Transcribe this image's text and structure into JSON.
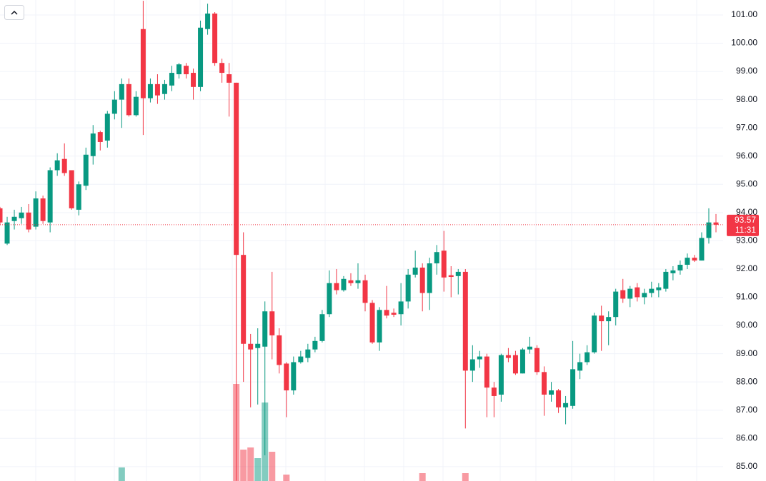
{
  "chart_data": {
    "type": "candlestick",
    "up_color": "#089981",
    "down_color": "#f23645",
    "ylim": [
      84.49,
      101.53
    ],
    "yticks": [
      {
        "value": 85,
        "label": "85.00"
      },
      {
        "value": 86,
        "label": "86.00"
      },
      {
        "value": 87,
        "label": "87.00"
      },
      {
        "value": 88,
        "label": "88.00"
      },
      {
        "value": 89,
        "label": "89.00"
      },
      {
        "value": 90,
        "label": "90.00"
      },
      {
        "value": 91,
        "label": "91.00"
      },
      {
        "value": 92,
        "label": "92.00"
      },
      {
        "value": 93,
        "label": "93.00"
      },
      {
        "value": 94,
        "label": "94.00"
      },
      {
        "value": 95,
        "label": "95.00"
      },
      {
        "value": 96,
        "label": "96.00"
      },
      {
        "value": 97,
        "label": "97.00"
      },
      {
        "value": 98,
        "label": "98.00"
      },
      {
        "value": 99,
        "label": "99.00"
      },
      {
        "value": 100,
        "label": "100.00"
      },
      {
        "value": 101,
        "label": "101.00"
      }
    ],
    "grid": true,
    "last_price": 93.57,
    "countdown": "11:31",
    "open": [
      94.15,
      92.9,
      93.7,
      93.8,
      94.0,
      93.5,
      94.5,
      93.65,
      95.5,
      95.9,
      95.5,
      94.1,
      94.95,
      96.0,
      96.85,
      96.55,
      97.5,
      98.0,
      98.55,
      97.45,
      100.5,
      98.05,
      98.55,
      98.2,
      98.5,
      98.9,
      99.2,
      98.95,
      98.45,
      100.5,
      101.05,
      99.3,
      98.9,
      98.6,
      92.5,
      89.35,
      89.2,
      89.25,
      90.5,
      89.65,
      88.65,
      87.7,
      88.7,
      88.85,
      89.15,
      89.45,
      90.4,
      91.5,
      91.25,
      91.6,
      91.5,
      91.6,
      90.8,
      89.4,
      90.55,
      90.45,
      90.4,
      90.85,
      91.8,
      92.05,
      91.15,
      92.2,
      92.65,
      91.78,
      91.75,
      91.9,
      88.4,
      88.8,
      88.9,
      87.8,
      87.55,
      88.95,
      88.95,
      88.3,
      89.15,
      89.2,
      88.35,
      87.55,
      87.7,
      87.1,
      87.15,
      88.4,
      88.7,
      89.05,
      90.35,
      90.15,
      90.3,
      91.25,
      90.95,
      91.35,
      91.0,
      91.15,
      91.25,
      91.3,
      91.85,
      91.95,
      92.15,
      92.4,
      92.3,
      93.1,
      93.65
    ],
    "high": [
      94.2,
      93.85,
      94.1,
      94.2,
      94.3,
      94.75,
      94.6,
      95.6,
      96.1,
      96.45,
      95.5,
      95.1,
      96.3,
      97.1,
      96.9,
      97.6,
      98.3,
      98.75,
      98.75,
      98.3,
      101.5,
      98.75,
      98.9,
      98.7,
      99.2,
      99.3,
      99.3,
      99.1,
      100.8,
      101.4,
      101.1,
      99.45,
      99.3,
      98.6,
      93.3,
      89.7,
      89.9,
      90.85,
      91.9,
      89.9,
      88.7,
      88.9,
      89.1,
      89.35,
      89.6,
      90.55,
      91.95,
      92.0,
      91.75,
      91.85,
      92.2,
      91.8,
      90.9,
      90.65,
      91.4,
      90.6,
      91.5,
      92.0,
      92.65,
      92.2,
      92.4,
      92.85,
      93.35,
      92.1,
      92.0,
      92.0,
      89.3,
      89.1,
      89.0,
      88.0,
      89.0,
      89.2,
      89.1,
      89.2,
      89.6,
      89.3,
      88.55,
      88.0,
      87.75,
      87.5,
      89.45,
      89.0,
      89.3,
      90.45,
      90.7,
      90.5,
      91.3,
      91.65,
      91.4,
      91.5,
      91.3,
      91.55,
      91.5,
      92.0,
      92.1,
      92.3,
      92.55,
      92.5,
      93.3,
      94.15,
      93.95
    ],
    "low": [
      93.55,
      92.85,
      93.4,
      93.6,
      93.3,
      93.4,
      93.6,
      93.3,
      95.3,
      95.3,
      94.1,
      93.9,
      94.8,
      95.7,
      96.2,
      96.3,
      97.3,
      97.0,
      97.4,
      97.4,
      96.75,
      97.9,
      97.85,
      98.0,
      98.3,
      98.75,
      98.75,
      98.0,
      98.3,
      100.3,
      99.2,
      98.6,
      97.4,
      84.5,
      88.0,
      87.1,
      87.2,
      85.4,
      88.8,
      88.3,
      86.75,
      87.55,
      88.65,
      88.7,
      89.05,
      89.4,
      90.3,
      91.1,
      91.2,
      91.4,
      91.3,
      90.5,
      89.35,
      89.1,
      90.25,
      90.3,
      90.0,
      90.6,
      91.7,
      90.5,
      90.55,
      91.8,
      91.2,
      91.0,
      91.1,
      86.35,
      88.0,
      88.5,
      86.75,
      86.75,
      87.3,
      88.7,
      88.25,
      88.3,
      89.0,
      88.25,
      86.8,
      87.3,
      86.9,
      86.5,
      87.05,
      88.1,
      88.6,
      89.0,
      89.1,
      89.3,
      90.0,
      90.8,
      90.65,
      90.85,
      90.75,
      91.0,
      91.0,
      91.2,
      91.6,
      91.8,
      92.0,
      92.25,
      92.3,
      92.9,
      93.3
    ],
    "close": [
      93.65,
      93.65,
      93.85,
      94.0,
      93.4,
      94.5,
      93.7,
      95.5,
      95.85,
      95.4,
      94.15,
      95.0,
      96.05,
      96.8,
      96.5,
      97.5,
      98.0,
      98.55,
      97.45,
      98.1,
      98.05,
      98.55,
      98.15,
      98.55,
      98.95,
      99.25,
      98.9,
      98.45,
      100.55,
      101.05,
      99.3,
      98.95,
      98.6,
      92.5,
      89.35,
      89.15,
      89.35,
      90.5,
      89.65,
      88.6,
      87.7,
      88.7,
      88.9,
      89.15,
      89.45,
      90.4,
      91.5,
      91.25,
      91.65,
      91.5,
      91.6,
      90.8,
      89.4,
      90.55,
      90.35,
      90.38,
      90.85,
      91.8,
      92.05,
      91.15,
      92.2,
      92.6,
      91.7,
      91.72,
      91.9,
      88.4,
      88.8,
      88.9,
      87.8,
      87.5,
      88.95,
      88.85,
      88.3,
      89.15,
      89.25,
      88.35,
      87.55,
      87.7,
      87.1,
      87.25,
      88.45,
      88.7,
      89.05,
      90.35,
      90.15,
      90.3,
      91.2,
      90.95,
      91.3,
      91.0,
      91.15,
      91.3,
      91.35,
      91.9,
      91.95,
      92.15,
      92.4,
      92.3,
      93.1,
      93.65,
      93.57
    ],
    "volume": [
      null,
      null,
      null,
      null,
      null,
      null,
      null,
      null,
      null,
      null,
      null,
      null,
      null,
      null,
      null,
      null,
      null,
      19,
      null,
      null,
      null,
      null,
      null,
      null,
      null,
      null,
      null,
      null,
      null,
      null,
      null,
      null,
      null,
      136,
      44,
      47,
      32,
      110,
      41,
      null,
      9,
      null,
      null,
      null,
      null,
      null,
      null,
      null,
      null,
      null,
      null,
      null,
      null,
      null,
      null,
      null,
      null,
      null,
      null,
      11,
      null,
      null,
      null,
      null,
      null,
      11,
      null,
      null,
      null,
      null,
      null,
      null,
      null,
      null,
      null,
      null,
      null,
      null,
      null,
      null,
      null,
      null,
      null,
      null,
      null,
      null,
      null,
      null,
      null,
      null,
      null,
      null,
      null,
      null,
      null,
      null,
      null,
      null,
      null,
      null,
      null
    ]
  }
}
